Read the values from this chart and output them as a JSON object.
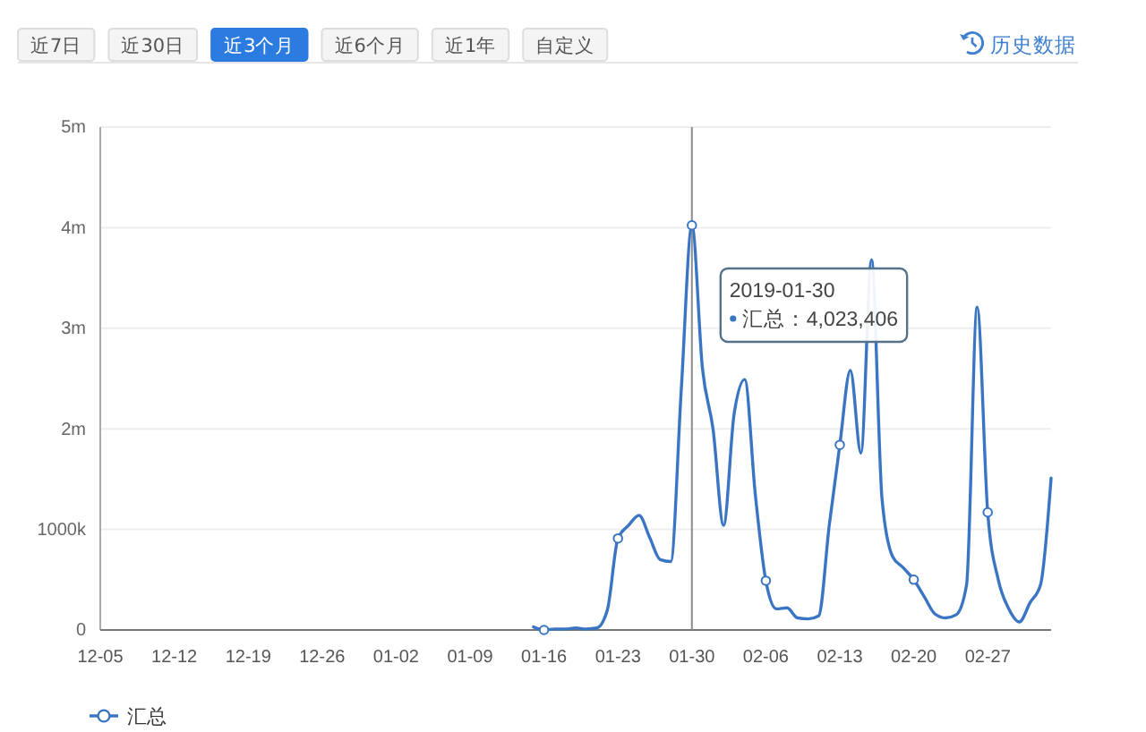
{
  "chart_data": {
    "type": "line",
    "annotations": [
      "近7日",
      "近30日",
      "近3个月",
      "近6个月",
      "近1年",
      "自定义",
      "历史数据",
      "2019-01-30",
      "汇总：4,023,406"
    ],
    "x": [
      "2019-01-15",
      "2019-01-16",
      "2019-01-17",
      "2019-01-18",
      "2019-01-19",
      "2019-01-20",
      "2019-01-21",
      "2019-01-22",
      "2019-01-23",
      "2019-01-24",
      "2019-01-25",
      "2019-01-26",
      "2019-01-27",
      "2019-01-28",
      "2019-01-29",
      "2019-01-30",
      "2019-01-31",
      "2019-02-01",
      "2019-02-02",
      "2019-02-03",
      "2019-02-04",
      "2019-02-05",
      "2019-02-06",
      "2019-02-07",
      "2019-02-08",
      "2019-02-09",
      "2019-02-10",
      "2019-02-11",
      "2019-02-12",
      "2019-02-13",
      "2019-02-14",
      "2019-02-15",
      "2019-02-16",
      "2019-02-17",
      "2019-02-18",
      "2019-02-19",
      "2019-02-20",
      "2019-02-21",
      "2019-02-22",
      "2019-02-23",
      "2019-02-24",
      "2019-02-25",
      "2019-02-26",
      "2019-02-27",
      "2019-02-28",
      "2019-03-01",
      "2019-03-02",
      "2019-03-03",
      "2019-03-04",
      "2019-03-05"
    ],
    "series": [
      {
        "name": "汇总",
        "color": "#3a75c4",
        "values": [
          30000,
          0,
          10000,
          10000,
          20000,
          10000,
          20000,
          200000,
          910000,
          1040000,
          1140000,
          920000,
          700000,
          680000,
          2400000,
          4023406,
          2600000,
          2000000,
          1040000,
          2150000,
          2490000,
          1350000,
          490000,
          210000,
          220000,
          120000,
          110000,
          140000,
          1040000,
          1840000,
          2580000,
          1760000,
          3680000,
          1300000,
          730000,
          620000,
          500000,
          330000,
          160000,
          120000,
          150000,
          450000,
          3210000,
          1170000,
          500000,
          210000,
          80000,
          270000,
          450000,
          1510000
        ]
      },
      {
        "type": "scatter",
        "color": "#3a75c4",
        "x": [
          "2019-01-16",
          "2019-01-23",
          "2019-01-30",
          "2019-02-06",
          "2019-02-13",
          "2019-02-20",
          "2019-02-27"
        ],
        "values": [
          0,
          910000,
          4023406,
          490000,
          1840000,
          500000,
          1170000
        ]
      }
    ],
    "xlim": [
      "2018-12-05",
      "2019-03-05"
    ],
    "xticks": [
      {
        "value": "2018-12-05",
        "label": "12-05"
      },
      {
        "value": "2018-12-12",
        "label": "12-12"
      },
      {
        "value": "2018-12-19",
        "label": "12-19"
      },
      {
        "value": "2018-12-26",
        "label": "12-26"
      },
      {
        "value": "2019-01-02",
        "label": "01-02"
      },
      {
        "value": "2019-01-09",
        "label": "01-09"
      },
      {
        "value": "2019-01-16",
        "label": "01-16"
      },
      {
        "value": "2019-01-23",
        "label": "01-23"
      },
      {
        "value": "2019-01-30",
        "label": "01-30"
      },
      {
        "value": "2019-02-06",
        "label": "02-06"
      },
      {
        "value": "2019-02-13",
        "label": "02-13"
      },
      {
        "value": "2019-02-20",
        "label": "02-20"
      },
      {
        "value": "2019-02-27",
        "label": "02-27"
      }
    ],
    "ylim": [
      0,
      5000000
    ],
    "yticks": [
      0,
      {
        "value": 1000000,
        "label": "1000k"
      },
      {
        "value": 2000000,
        "label": "2m"
      },
      {
        "value": 3000000,
        "label": "3m"
      },
      {
        "value": 4000000,
        "label": "4m"
      },
      {
        "value": 5000000,
        "label": "5m"
      }
    ],
    "grid": "y",
    "legend": "bottom",
    "line_style": "solid",
    "ref_lines": [
      {
        "axis": "x",
        "value": "2019-01-30",
        "color": "#8c8c8c"
      }
    ]
  }
}
